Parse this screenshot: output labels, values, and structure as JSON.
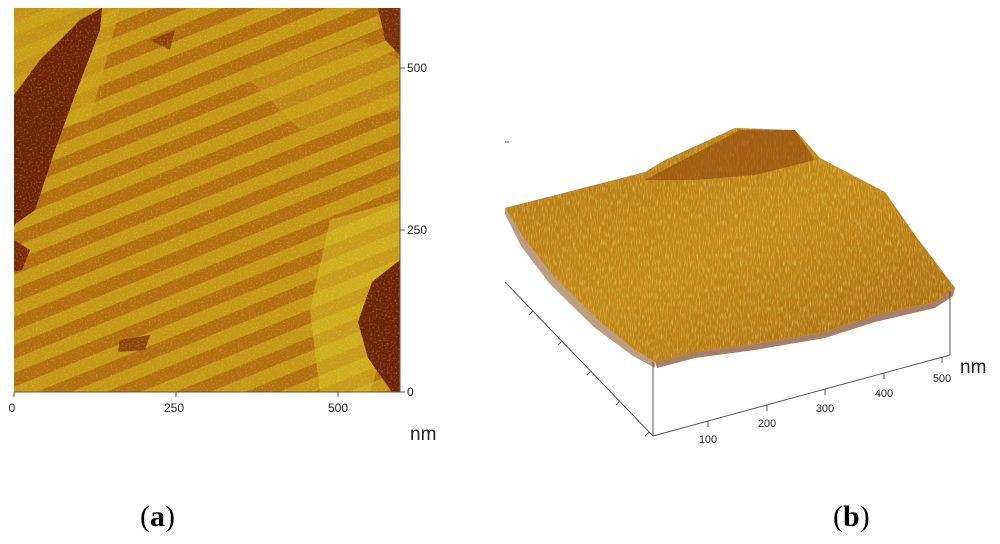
{
  "panel_a": {
    "x_ticks": [
      "0",
      "250",
      "500"
    ],
    "y_ticks": [
      "500",
      "250",
      "0"
    ],
    "unit": "nm"
  },
  "panel_b": {
    "x_ticks": [
      "100",
      "200",
      "300",
      "400",
      "500"
    ],
    "unit": "nm"
  },
  "captions": {
    "a_open": "(",
    "a_letter": "a",
    "a_close": ")",
    "b_open": "(",
    "b_letter": "b",
    "b_close": ")"
  },
  "colors": {
    "afm_dark": "#6e2407",
    "afm_mid": "#b8770e",
    "afm_light": "#d8c01c",
    "afm_bright": "#eedc3a"
  }
}
